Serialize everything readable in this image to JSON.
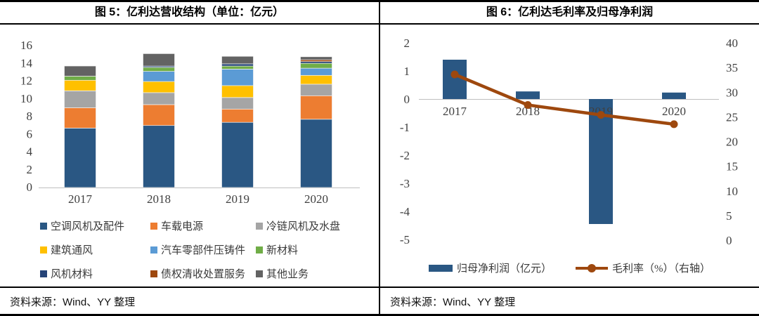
{
  "panels": [
    {
      "title": "图 5：亿利达营收结构（单位：亿元）",
      "source": "资料来源：Wind、YY 整理"
    },
    {
      "title": "图 6：亿利达毛利率及归母净利润",
      "source": "资料来源：Wind、YY 整理"
    }
  ],
  "chart_data": [
    {
      "type": "bar",
      "stacked": true,
      "title": "亿利达营收结构（单位：亿元）",
      "categories": [
        "2017",
        "2018",
        "2019",
        "2020"
      ],
      "series": [
        {
          "name": "空调风机及配件",
          "color": "#2A5783",
          "values": [
            6.7,
            7.0,
            7.35,
            7.7
          ]
        },
        {
          "name": "车载电源",
          "color": "#ED7D31",
          "values": [
            2.3,
            2.35,
            1.5,
            2.65
          ]
        },
        {
          "name": "冷链风机及水盘",
          "color": "#A5A5A5",
          "values": [
            1.9,
            1.35,
            1.3,
            1.3
          ]
        },
        {
          "name": "建筑通风",
          "color": "#FFC000",
          "values": [
            1.2,
            1.25,
            1.35,
            1.0
          ]
        },
        {
          "name": "汽车零部件压铸件",
          "color": "#5B9BD5",
          "values": [
            0,
            1.15,
            1.85,
            0.8
          ]
        },
        {
          "name": "新材料",
          "color": "#70AD47",
          "values": [
            0.45,
            0.45,
            0.35,
            0.55
          ]
        },
        {
          "name": "风机材料",
          "color": "#264478",
          "values": [
            0,
            0.15,
            0.25,
            0.2
          ]
        },
        {
          "name": "债权清收处置服务",
          "color": "#9E480E",
          "values": [
            0,
            0,
            0,
            0.2
          ]
        },
        {
          "name": "其他业务",
          "color": "#636363",
          "values": [
            1.15,
            1.4,
            0.85,
            0.35
          ]
        }
      ],
      "ylim": [
        0,
        16
      ],
      "ytick_step": 2,
      "grid": false,
      "legend_position": "bottom"
    },
    {
      "type": "combo",
      "title": "亿利达毛利率及归母净利润",
      "categories": [
        "2017",
        "2018",
        "2019",
        "2020"
      ],
      "bar_series": {
        "name": "归母净利润（亿元）",
        "color": "#2A5783",
        "values": [
          1.4,
          0.27,
          -4.45,
          0.23
        ]
      },
      "line_series": {
        "name": "毛利率（%）（右轴）",
        "color": "#9E480E",
        "values": [
          33.6,
          27.4,
          25.4,
          23.5
        ],
        "axis": "right"
      },
      "left_axis": {
        "min": -5,
        "max": 2,
        "step": 1
      },
      "right_axis": {
        "min": 0,
        "max": 40,
        "step": 5
      },
      "grid": false,
      "legend_position": "bottom"
    }
  ]
}
